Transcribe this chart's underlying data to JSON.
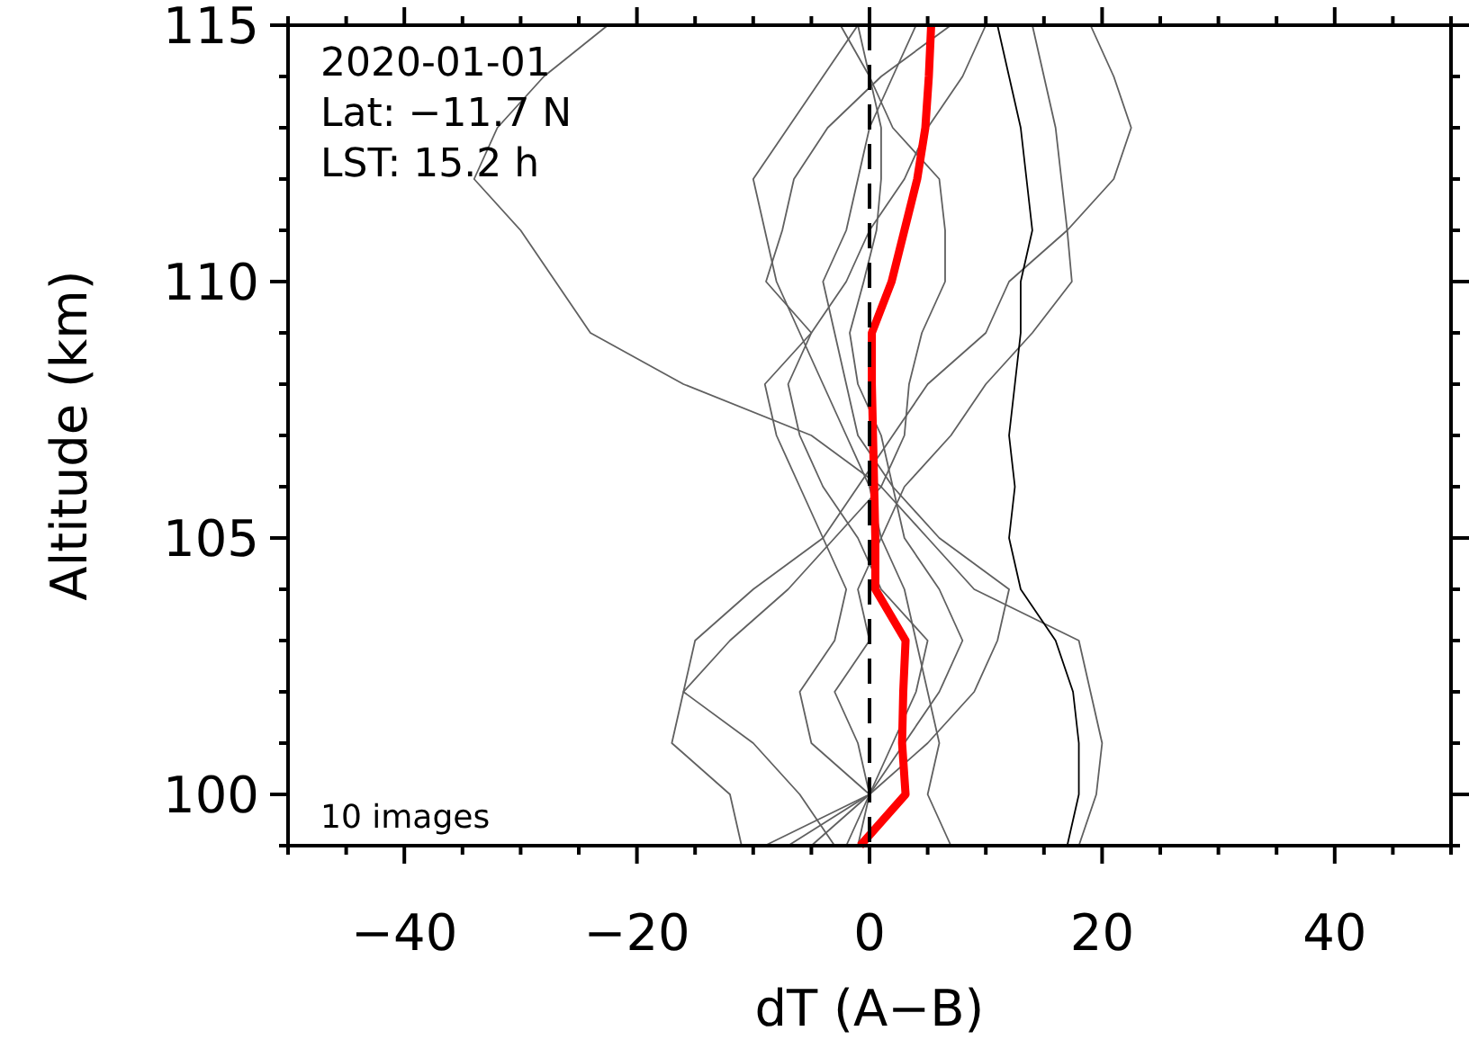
{
  "chart_data": {
    "type": "line",
    "xlabel": "dT (A−B)",
    "ylabel": "Altitude (km)",
    "annotations": [
      "2020-01-01",
      "Lat: −11.7 N",
      "LST: 15.2 h",
      "10 images"
    ],
    "xlim": [
      -50,
      50
    ],
    "ylim": [
      99,
      115
    ],
    "xticks": [
      {
        "value": -50,
        "label": null
      },
      {
        "value": -45,
        "label": null
      },
      -40,
      {
        "value": -35,
        "label": null
      },
      {
        "value": -30,
        "label": null
      },
      {
        "value": -25,
        "label": null
      },
      -20,
      {
        "value": -15,
        "label": null
      },
      {
        "value": -10,
        "label": null
      },
      {
        "value": -5,
        "label": null
      },
      0,
      {
        "value": 5,
        "label": null
      },
      {
        "value": 10,
        "label": null
      },
      {
        "value": 15,
        "label": null
      },
      20,
      {
        "value": 25,
        "label": null
      },
      {
        "value": 30,
        "label": null
      },
      {
        "value": 35,
        "label": null
      },
      40,
      {
        "value": 45,
        "label": null
      },
      {
        "value": 50,
        "label": null
      }
    ],
    "yticks": [
      {
        "value": 99,
        "label": null
      },
      100,
      {
        "value": 101,
        "label": null
      },
      {
        "value": 102,
        "label": null
      },
      {
        "value": 103,
        "label": null
      },
      {
        "value": 104,
        "label": null
      },
      105,
      {
        "value": 106,
        "label": null
      },
      {
        "value": 107,
        "label": null
      },
      {
        "value": 108,
        "label": null
      },
      {
        "value": 109,
        "label": null
      },
      110,
      {
        "value": 111,
        "label": null
      },
      {
        "value": 112,
        "label": null
      },
      {
        "value": 113,
        "label": null
      },
      {
        "value": 114,
        "label": null
      },
      115
    ],
    "ref_lines": [
      {
        "axis": "x",
        "value": 0,
        "color": "#000000",
        "line_style": "dashed"
      }
    ],
    "grid": false,
    "series": [
      {
        "color": "#606060",
        "x": [
          18,
          19.5,
          20,
          19,
          18,
          9,
          5,
          1,
          -5,
          -16,
          -24,
          -27,
          -30,
          -34,
          -32,
          -28,
          -22.5
        ],
        "values": [
          99,
          100,
          101,
          102,
          103,
          104,
          105,
          106,
          107,
          108,
          109,
          110,
          111,
          112,
          113,
          114,
          115
        ]
      },
      {
        "color": "#606060",
        "x": [
          -3,
          -6,
          -10,
          -16,
          -15,
          -10,
          -4,
          -1,
          2,
          5,
          10,
          12,
          17,
          21,
          22.5,
          21,
          19
        ],
        "values": [
          99,
          100,
          101,
          102,
          103,
          104,
          105,
          106,
          107,
          108,
          109,
          110,
          111,
          112,
          113,
          114,
          115
        ]
      },
      {
        "color": "#606060",
        "x": [
          -2,
          0,
          -1,
          -3,
          0,
          -1,
          1,
          3,
          7,
          10,
          14,
          17.4,
          17,
          16.5,
          16,
          15,
          14
        ],
        "values": [
          99,
          100,
          101,
          102,
          103,
          104,
          105,
          106,
          107,
          108,
          109,
          110,
          111,
          112,
          113,
          114,
          115
        ]
      },
      {
        "color": "#000000",
        "x": [
          17,
          18,
          18,
          17.5,
          16,
          13,
          12,
          12.5,
          12,
          12.5,
          13,
          13,
          14,
          13.5,
          13,
          12,
          11
        ],
        "values": [
          99,
          100,
          101,
          102,
          103,
          104,
          105,
          106,
          107,
          108,
          109,
          110,
          111,
          112,
          113,
          114,
          115
        ]
      },
      {
        "color": "#606060",
        "x": [
          -11,
          -12,
          -17,
          -16,
          -12,
          -7,
          -3,
          1,
          3,
          3.4,
          4.5,
          6.5,
          6.5,
          6,
          2,
          0,
          -2.5
        ],
        "values": [
          99,
          100,
          101,
          102,
          103,
          104,
          105,
          106,
          107,
          108,
          109,
          110,
          111,
          112,
          113,
          114,
          115
        ]
      },
      {
        "color": "#606060",
        "x": [
          -9,
          0,
          -5,
          -6,
          -3,
          -2,
          -4,
          -6,
          -8,
          -9,
          -5,
          -8.9,
          -7.5,
          -6.5,
          -3.6,
          1,
          7
        ],
        "values": [
          99,
          100,
          101,
          102,
          103,
          104,
          105,
          106,
          107,
          108,
          109,
          110,
          111,
          112,
          113,
          114,
          115
        ]
      },
      {
        "color": "#606060",
        "x": [
          -5,
          0,
          3,
          6,
          8,
          6,
          3,
          2,
          1,
          -1,
          -1.7,
          -0.5,
          0.6,
          1,
          1,
          0,
          -1
        ],
        "values": [
          99,
          100,
          101,
          102,
          103,
          104,
          105,
          106,
          107,
          108,
          109,
          110,
          111,
          112,
          113,
          114,
          115
        ]
      },
      {
        "color": "#606060",
        "x": [
          -7,
          0,
          5,
          9,
          11,
          12,
          6,
          2,
          -1,
          -2,
          -3,
          -4,
          -2,
          -1,
          0,
          2,
          4
        ],
        "values": [
          99,
          100,
          101,
          102,
          103,
          104,
          105,
          106,
          107,
          108,
          109,
          110,
          111,
          112,
          113,
          114,
          115
        ]
      },
      {
        "color": "#606060",
        "x": [
          -1,
          0,
          2,
          4,
          5,
          1,
          -1,
          -4,
          -6,
          -7,
          -5,
          -2,
          0,
          3,
          5,
          8,
          10
        ],
        "values": [
          99,
          100,
          101,
          102,
          103,
          104,
          105,
          106,
          107,
          108,
          109,
          110,
          111,
          112,
          113,
          114,
          115
        ]
      },
      {
        "color": "#606060",
        "x": [
          7,
          5,
          6,
          5,
          4,
          3,
          1,
          0,
          -2,
          -4,
          -6,
          -8,
          -9,
          -10,
          -7,
          -4,
          -1
        ],
        "values": [
          99,
          100,
          101,
          102,
          103,
          104,
          105,
          106,
          107,
          108,
          109,
          110,
          111,
          112,
          113,
          114,
          115
        ]
      },
      {
        "color": "#ff0000",
        "x": [
          -0.8,
          3.1,
          2.8,
          2.9,
          3.1,
          0.5,
          0.5,
          0.4,
          0.3,
          0.2,
          0.2,
          1.9,
          3.0,
          4.1,
          4.8,
          5.1,
          5.3
        ],
        "values": [
          99,
          100,
          101,
          102,
          103,
          104,
          105,
          106,
          107,
          108,
          109,
          110,
          111,
          112,
          113,
          114,
          115
        ]
      }
    ]
  }
}
